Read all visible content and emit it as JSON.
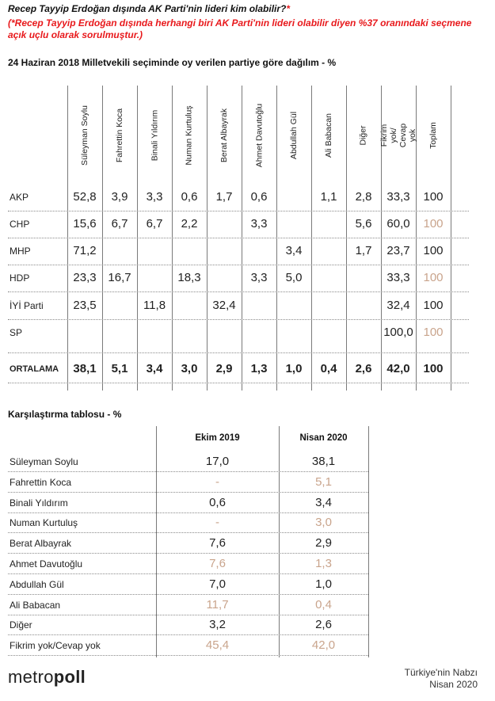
{
  "header": {
    "question": "Recep Tayyip Erdoğan dışında AK Parti'nin lideri kim olabilir?",
    "question_star": "*",
    "note": "(*Recep Tayyip Erdoğan dışında herhangi biri AK Parti'nin lideri olabilir diyen %37 oranındaki seçmene açık uçlu olarak sorulmuştur.)",
    "table1_title": "24 Haziran 2018 Milletvekili seçiminde oy verilen partiye göre dağılım - %",
    "table2_title": "Karşılaştırma tablosu - %"
  },
  "colors": {
    "accent_red": "#e8191c",
    "muted_value": "#c9a48c",
    "text": "#222222"
  },
  "chart_data": [
    {
      "type": "table",
      "title": "24 Haziran 2018 Milletvekili seçiminde oy verilen partiye göre dağılım - %",
      "columns": [
        "Süleyman Soylu",
        "Fahrettin Koca",
        "Binali Yıldırım",
        "Numan Kurtuluş",
        "Berat Albayrak",
        "Ahmet Davutoğlu",
        "Abdullah Gül",
        "Ali Babacan",
        "Diğer",
        "Fikrim yok/ Cevap yok",
        "Toplam"
      ],
      "rows": [
        {
          "label": "AKP",
          "values": [
            "52,8",
            "3,9",
            "3,3",
            "0,6",
            "1,7",
            "0,6",
            "",
            "1,1",
            "2,8",
            "33,3",
            "100"
          ],
          "muted": [
            false,
            false,
            false,
            false,
            false,
            false,
            false,
            false,
            false,
            false,
            false
          ]
        },
        {
          "label": "CHP",
          "values": [
            "15,6",
            "6,7",
            "6,7",
            "2,2",
            "",
            "3,3",
            "",
            "",
            "5,6",
            "60,0",
            "100"
          ],
          "muted": [
            false,
            false,
            false,
            false,
            false,
            false,
            false,
            false,
            false,
            false,
            true
          ]
        },
        {
          "label": "MHP",
          "values": [
            "71,2",
            "",
            "",
            "",
            "",
            "",
            "3,4",
            "",
            "1,7",
            "23,7",
            "100"
          ],
          "muted": [
            false,
            false,
            false,
            false,
            false,
            false,
            false,
            false,
            false,
            false,
            false
          ]
        },
        {
          "label": "HDP",
          "values": [
            "23,3",
            "16,7",
            "",
            "18,3",
            "",
            "3,3",
            "5,0",
            "",
            "",
            "33,3",
            "100"
          ],
          "muted": [
            false,
            false,
            false,
            false,
            false,
            false,
            false,
            false,
            false,
            false,
            true
          ]
        },
        {
          "label": "İYİ Parti",
          "values": [
            "23,5",
            "",
            "11,8",
            "",
            "32,4",
            "",
            "",
            "",
            "",
            "32,4",
            "100"
          ],
          "muted": [
            false,
            false,
            false,
            false,
            false,
            false,
            false,
            false,
            false,
            false,
            false
          ]
        },
        {
          "label": "SP",
          "values": [
            "",
            "",
            "",
            "",
            "",
            "",
            "",
            "",
            "",
            "100,0",
            "100"
          ],
          "muted": [
            false,
            false,
            false,
            false,
            false,
            false,
            false,
            false,
            false,
            false,
            true
          ]
        },
        {
          "label": "ORTALAMA",
          "values": [
            "38,1",
            "5,1",
            "3,4",
            "3,0",
            "2,9",
            "1,3",
            "1,0",
            "0,4",
            "2,6",
            "42,0",
            "100"
          ],
          "muted": [
            false,
            false,
            false,
            false,
            false,
            false,
            false,
            false,
            false,
            false,
            false
          ],
          "bold": true
        }
      ]
    },
    {
      "type": "table",
      "title": "Karşılaştırma tablosu - %",
      "columns": [
        "Ekim 2019",
        "Nisan 2020"
      ],
      "rows": [
        {
          "label": "Süleyman Soylu",
          "values": [
            "17,0",
            "38,1"
          ],
          "muted": [
            false,
            false
          ]
        },
        {
          "label": "Fahrettin Koca",
          "values": [
            "-",
            "5,1"
          ],
          "muted": [
            true,
            true
          ]
        },
        {
          "label": "Binali Yıldırım",
          "values": [
            "0,6",
            "3,4"
          ],
          "muted": [
            false,
            false
          ]
        },
        {
          "label": "Numan Kurtuluş",
          "values": [
            "-",
            "3,0"
          ],
          "muted": [
            true,
            true
          ]
        },
        {
          "label": "Berat Albayrak",
          "values": [
            "7,6",
            "2,9"
          ],
          "muted": [
            false,
            false
          ]
        },
        {
          "label": "Ahmet Davutoğlu",
          "values": [
            "7,6",
            "1,3"
          ],
          "muted": [
            true,
            true
          ]
        },
        {
          "label": "Abdullah Gül",
          "values": [
            "7,0",
            "1,0"
          ],
          "muted": [
            false,
            false
          ]
        },
        {
          "label": "Ali Babacan",
          "values": [
            "11,7",
            "0,4"
          ],
          "muted": [
            true,
            true
          ]
        },
        {
          "label": "Diğer",
          "values": [
            "3,2",
            "2,6"
          ],
          "muted": [
            false,
            false
          ]
        },
        {
          "label": "Fikrim yok/Cevap yok",
          "values": [
            "45,4",
            "42,0"
          ],
          "muted": [
            true,
            true
          ]
        }
      ]
    }
  ],
  "footer": {
    "logo_light": "metro",
    "logo_bold": "poll",
    "source_line1": "Türkiye'nin Nabzı",
    "source_line2": "Nisan 2020"
  }
}
